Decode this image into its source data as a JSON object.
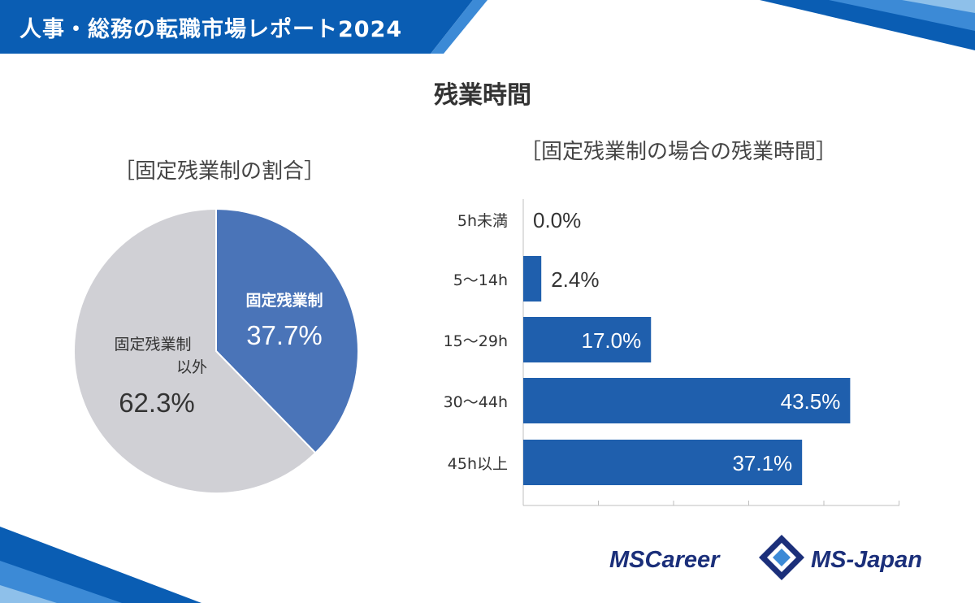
{
  "header": {
    "title": "人事・総務の転職市場レポート2024"
  },
  "section": {
    "title": "残業時間"
  },
  "colors": {
    "header_blue": "#0a5db3",
    "bar_blue": "#1f5fad",
    "pie_fixed": "#4a74b8",
    "pie_other": "#d0d0d5",
    "logo_navy": "#1b2f7a"
  },
  "chart_data": [
    {
      "type": "pie",
      "title": "［固定残業制の割合］",
      "slices": [
        {
          "label": "固定残業制",
          "value": 37.7,
          "value_label": "37.7%",
          "color": "#4a74b8"
        },
        {
          "label": "固定残業制\n以外",
          "value": 62.3,
          "value_label": "62.3%",
          "color": "#d0d0d5"
        }
      ]
    },
    {
      "type": "bar",
      "orientation": "horizontal",
      "title": "［固定残業制の場合の残業時間］",
      "categories": [
        "5h未満",
        "5～14h",
        "15～29h",
        "30～44h",
        "45h以上"
      ],
      "values": [
        0.0,
        2.4,
        17.0,
        43.5,
        37.1
      ],
      "value_labels": [
        "0.0%",
        "2.4%",
        "17.0%",
        "43.5%",
        "37.1%"
      ],
      "xlim": [
        0,
        50
      ],
      "grid": false,
      "color": "#1f5fad"
    }
  ],
  "logos": {
    "left": "MSCareer",
    "right": "MS-Japan"
  }
}
